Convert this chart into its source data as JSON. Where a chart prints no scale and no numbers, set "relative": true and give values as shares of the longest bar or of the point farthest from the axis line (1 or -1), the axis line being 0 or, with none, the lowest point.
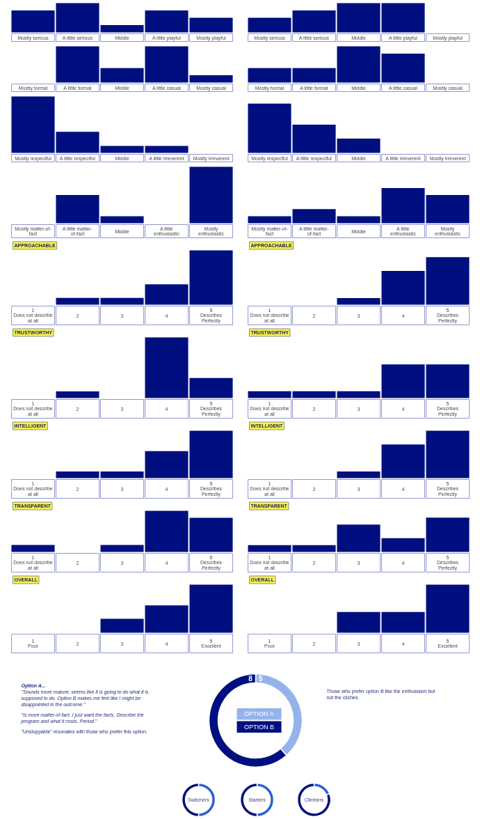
{
  "chart_data": [
    {
      "type": "bar",
      "relative": true,
      "categories": [
        "Mostly serious",
        "A little serious",
        "Middle",
        "A little playful",
        "Mostly playful"
      ],
      "values": [
        0.75,
        1,
        0.25,
        0.75,
        0.5
      ],
      "color": "#000f80"
    },
    {
      "type": "bar",
      "relative": true,
      "categories": [
        "Mostly serious",
        "A little serious",
        "Middle",
        "A little playful",
        "Mostly playful"
      ],
      "values": [
        0.5,
        0.75,
        1,
        1,
        0
      ],
      "color": "#000f80"
    },
    {
      "type": "bar",
      "relative": true,
      "categories": [
        "Mostly formal",
        "A little formal",
        "Middle",
        "A little casual",
        "Mostly casual"
      ],
      "values": [
        0,
        1,
        0.4,
        1,
        0.2
      ],
      "color": "#000f80"
    },
    {
      "type": "bar",
      "relative": true,
      "categories": [
        "Mostly formal",
        "A little formal",
        "Middle",
        "A little casual",
        "Mostly casual"
      ],
      "values": [
        0.4,
        0.4,
        1,
        0.8,
        0
      ],
      "color": "#000f80"
    },
    {
      "type": "bar",
      "relative": true,
      "categories": [
        "Mostly respectful",
        "A little respectful",
        "Middle",
        "A little irreverent",
        "Mostly irreverent"
      ],
      "values": [
        1,
        0.375,
        0.125,
        0.125,
        0
      ],
      "color": "#000f80"
    },
    {
      "type": "bar",
      "relative": true,
      "categories": [
        "Mostly respectful",
        "A little respectful",
        "Middle",
        "A little irreverent",
        "Mostly irreverent"
      ],
      "values": [
        1,
        0.57,
        0.29,
        0,
        0
      ],
      "color": "#000f80"
    },
    {
      "type": "bar",
      "relative": true,
      "categories": [
        "Mostly matter-of-fact",
        "A little matter-of-fact",
        "Middle",
        "A little enthusiastic",
        "Mostly enthusiastic"
      ],
      "values": [
        0,
        0.5,
        0.125,
        0,
        1
      ],
      "color": "#000f80"
    },
    {
      "type": "bar",
      "relative": true,
      "categories": [
        "Mostly matter-of-fact",
        "A little matter-of-fact",
        "Middle",
        "A little enthusiastic",
        "Mostly enthusiastic"
      ],
      "values": [
        0.2,
        0.4,
        0.2,
        1,
        0.8
      ],
      "color": "#000f80"
    },
    {
      "type": "bar",
      "relative": true,
      "title": "APPROACHABLE",
      "categories": [
        "1\nDoes not describe at all",
        "2",
        "3",
        "4",
        "5\nDescribes Perfectly"
      ],
      "values": [
        0,
        0.125,
        0.125,
        0.375,
        1
      ],
      "color": "#000f80"
    },
    {
      "type": "bar",
      "relative": true,
      "title": "APPROACHABLE",
      "categories": [
        "1\nDoes not describe at all",
        "2",
        "3",
        "4",
        "5\nDescribes Perfectly"
      ],
      "values": [
        0,
        0,
        0.14,
        0.71,
        1
      ],
      "color": "#000f80"
    },
    {
      "type": "bar",
      "relative": true,
      "title": "TRUSTWORTHY",
      "categories": [
        "1\nDoes not describe at all",
        "2",
        "3",
        "4",
        "5\nDescribes Perfectly"
      ],
      "values": [
        0,
        0.11,
        0,
        1,
        0.33
      ],
      "color": "#000f80"
    },
    {
      "type": "bar",
      "relative": true,
      "title": "TRUSTWORTHY",
      "categories": [
        "1\nDoes not describe at all",
        "2",
        "3",
        "4",
        "5\nDescribes Perfectly"
      ],
      "values": [
        0.2,
        0.2,
        0.2,
        1,
        1
      ],
      "color": "#000f80"
    },
    {
      "type": "bar",
      "relative": true,
      "title": "INTELLIGENT",
      "categories": [
        "1\nDoes not describe at all",
        "2",
        "3",
        "4",
        "5\nDescribes Perfectly"
      ],
      "values": [
        0,
        0.14,
        0.14,
        0.57,
        1
      ],
      "color": "#000f80"
    },
    {
      "type": "bar",
      "relative": true,
      "title": "INTELLIGENT",
      "categories": [
        "1\nDoes not describe at all",
        "2",
        "3",
        "4",
        "5\nDescribes Perfectly"
      ],
      "values": [
        0,
        0,
        0.14,
        0.71,
        1
      ],
      "color": "#000f80"
    },
    {
      "type": "bar",
      "relative": true,
      "title": "TRANSPARENT",
      "categories": [
        "1\nDoes not describe at all",
        "2",
        "3",
        "4",
        "5\nDescribes Perfectly"
      ],
      "values": [
        0.17,
        0,
        0.17,
        1,
        0.83
      ],
      "color": "#000f80"
    },
    {
      "type": "bar",
      "relative": true,
      "title": "TRANSPARENT",
      "categories": [
        "1\nDoes not describe at all",
        "2",
        "3",
        "4",
        "5\nDescribes Perfectly"
      ],
      "values": [
        0.2,
        0.2,
        0.8,
        0.4,
        1
      ],
      "color": "#000f80"
    },
    {
      "type": "bar",
      "relative": true,
      "title": "OVERALL",
      "categories": [
        "1\nPoor",
        "2",
        "3",
        "4",
        "5\nExcellent"
      ],
      "values": [
        0,
        0,
        0.29,
        0.57,
        1
      ],
      "color": "#000f80"
    },
    {
      "type": "bar",
      "relative": true,
      "title": "OVERALL",
      "categories": [
        "1\nPoor",
        "2",
        "3",
        "4",
        "5\nExcellent"
      ],
      "values": [
        0,
        0,
        0.43,
        0.43,
        1
      ],
      "color": "#000f80"
    },
    {
      "type": "other",
      "title": "Option A...",
      "annotations": [
        "\"Sounds more mature; seems like it is going to do what it is supposed to do. Option B makes me feel like I might be disappointed in the outcome.\"",
        "\"Is more matter-of-fact. I just want the facts. Describe the program and what it costs. Period.\"",
        "\"Unstoppable\" resonates with those who prefer this option."
      ]
    },
    {
      "type": "donut",
      "categories": [
        "OPTION A",
        "OPTION B"
      ],
      "values": [
        5,
        8
      ],
      "colors": [
        "#94b3ec",
        "#000f80"
      ],
      "data_labels": true
    },
    {
      "type": "other",
      "annotations": [
        "Those who prefer option B like the enthusiasm but not the cliches."
      ]
    },
    {
      "type": "donut",
      "title": "Switchers",
      "categories": [
        null,
        null
      ],
      "values": [
        50,
        50
      ],
      "colors": [
        "#2a5fd6",
        "#000f80"
      ]
    },
    {
      "type": "donut",
      "title": "Starters",
      "categories": [
        null,
        null
      ],
      "values": [
        50,
        50
      ],
      "colors": [
        "#2a5fd6",
        "#000f80"
      ]
    },
    {
      "type": "donut",
      "title": "Climbers",
      "categories": [
        null,
        null
      ],
      "values": [
        19,
        81
      ],
      "colors": [
        "#2a5fd6",
        "#000f80"
      ]
    }
  ]
}
